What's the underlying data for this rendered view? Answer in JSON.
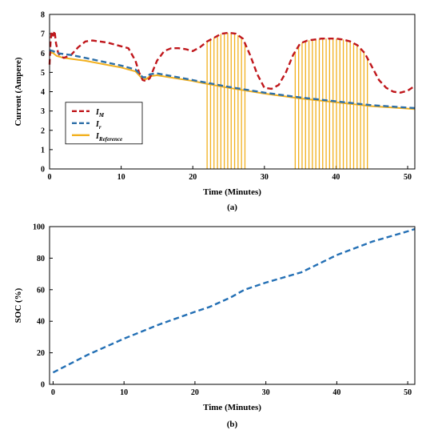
{
  "chart_data": [
    {
      "type": "line",
      "caption": "(a)",
      "xlabel": "Time (Minutes)",
      "ylabel": "Current (Ampere)",
      "xlim": [
        0,
        51
      ],
      "ylim": [
        0,
        8
      ],
      "xticks": [
        0,
        10,
        20,
        30,
        40,
        50
      ],
      "yticks": [
        0,
        1,
        2,
        3,
        4,
        5,
        6,
        7,
        8
      ],
      "grid": false,
      "legend_placement": "lower-left",
      "series": [
        {
          "name": "I_M",
          "legend": {
            "main": "I",
            "sub": "M"
          },
          "color": "#c0171c",
          "style": "dashed",
          "x": [
            0,
            0.15,
            0.3,
            0.5,
            0.7,
            0.9,
            1.2,
            1.5,
            2,
            3,
            4,
            5,
            6,
            7,
            8,
            9,
            10,
            11,
            12,
            12.5,
            13,
            13.5,
            14,
            15,
            16,
            17,
            18,
            19,
            20,
            21,
            22,
            23,
            24,
            25,
            26,
            27,
            28,
            29,
            30,
            31,
            32,
            33,
            34,
            35,
            36,
            37,
            38,
            39,
            40,
            41,
            42,
            43,
            44,
            45,
            46,
            47,
            48,
            49,
            50,
            51
          ],
          "y": [
            5.4,
            6.6,
            7.1,
            6.9,
            7.15,
            6.5,
            6.0,
            5.85,
            5.75,
            5.9,
            6.3,
            6.6,
            6.65,
            6.6,
            6.55,
            6.45,
            6.35,
            6.25,
            5.6,
            5.0,
            4.6,
            4.55,
            4.7,
            5.6,
            6.1,
            6.25,
            6.25,
            6.2,
            6.1,
            6.3,
            6.6,
            6.8,
            7.0,
            7.05,
            7.0,
            6.75,
            5.9,
            4.9,
            4.2,
            4.15,
            4.35,
            5.0,
            5.9,
            6.5,
            6.65,
            6.7,
            6.75,
            6.75,
            6.75,
            6.7,
            6.6,
            6.4,
            6.0,
            5.3,
            4.6,
            4.2,
            4.0,
            3.95,
            4.05,
            4.3
          ]
        },
        {
          "name": "I_r",
          "legend": {
            "main": "I",
            "sub": "r"
          },
          "color": "#2d6fa8",
          "style": "dashed",
          "x": [
            0,
            0.5,
            1,
            2,
            3,
            5,
            10,
            12,
            13,
            13.5,
            14,
            15,
            20,
            25,
            30,
            35,
            40,
            45,
            51
          ],
          "y": [
            6.15,
            6.1,
            6.0,
            5.95,
            5.9,
            5.75,
            5.35,
            5.15,
            4.75,
            4.75,
            4.9,
            4.95,
            4.6,
            4.25,
            3.95,
            3.7,
            3.5,
            3.3,
            3.15
          ]
        },
        {
          "name": "I_Reference",
          "legend": {
            "main": "I",
            "sub": "Reference"
          },
          "color": "#f2b01e",
          "style": "solid",
          "x": [
            0,
            0.5,
            1,
            2,
            3,
            5,
            10,
            12,
            13,
            13.5,
            14,
            15,
            20,
            22,
            25,
            30,
            34,
            35,
            40,
            45,
            51
          ],
          "y": [
            6.05,
            6.0,
            5.85,
            5.75,
            5.7,
            5.6,
            5.25,
            5.05,
            4.65,
            4.65,
            4.8,
            4.85,
            4.55,
            4.4,
            4.2,
            3.9,
            3.7,
            3.65,
            3.45,
            3.25,
            3.1
          ],
          "pulse_windows": [
            [
              22,
              27.3
            ],
            [
              34.3,
              44.8
            ]
          ],
          "pulse_period": 0.48
        }
      ]
    },
    {
      "type": "line",
      "caption": "(b)",
      "xlabel": "Time (Minutes)",
      "ylabel": "SOC (%)",
      "xlim": [
        -0.5,
        51
      ],
      "ylim": [
        0,
        100
      ],
      "xticks": [
        0,
        10,
        20,
        30,
        40,
        50
      ],
      "yticks": [
        0,
        20,
        40,
        60,
        80,
        100
      ],
      "grid": false,
      "series": [
        {
          "color": "#2470b5",
          "style": "dashed",
          "x": [
            0,
            5,
            10,
            15,
            20,
            22,
            25,
            27,
            30,
            35,
            40,
            45,
            50,
            51
          ],
          "y": [
            7.5,
            19,
            29,
            38,
            46,
            49,
            55,
            60,
            64.5,
            71,
            82,
            90.5,
            97,
            98.5
          ]
        }
      ]
    }
  ]
}
